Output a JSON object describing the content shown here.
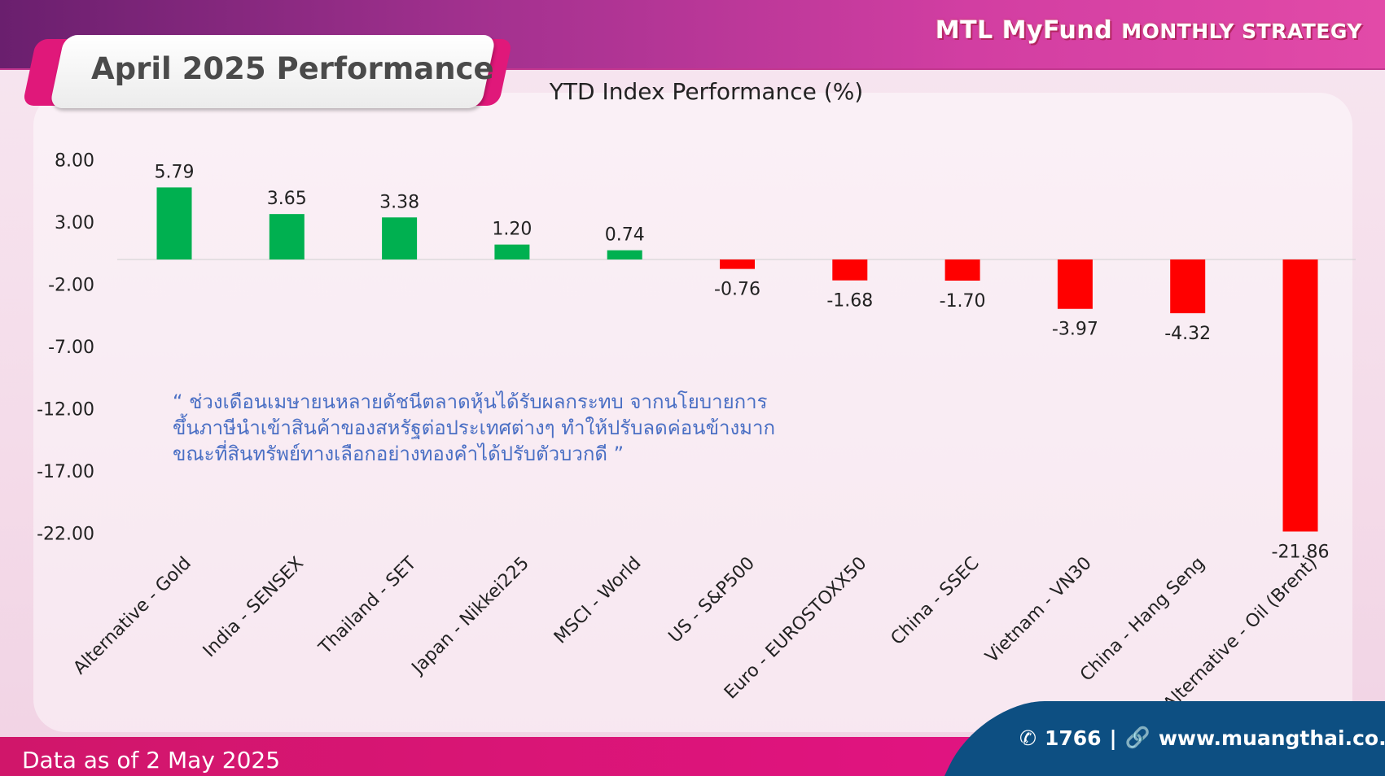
{
  "header": {
    "brand_main": "MTL MyFund",
    "brand_sub": "MONTHLY STRATEGY"
  },
  "page_title": "April 2025 Performance",
  "chart_data": {
    "type": "bar",
    "title": "YTD Index Performance (%)",
    "categories": [
      "Alternative - Gold",
      "India - SENSEX",
      "Thailand - SET",
      "Japan - Nikkei225",
      "MSCI - World",
      "US - S&P500",
      "Euro - EUROSTOXX50",
      "China - SSEC",
      "Vietnam - VN30",
      "China - Hang Seng",
      "Alternative - Oil (Brent)"
    ],
    "values": [
      5.79,
      3.65,
      3.38,
      1.2,
      0.74,
      -0.76,
      -1.68,
      -1.7,
      -3.97,
      -4.32,
      -21.86
    ],
    "value_labels": [
      "5.79",
      "3.65",
      "3.38",
      "1.20",
      "0.74",
      "-0.76",
      "-1.68",
      "-1.70",
      "-3.97",
      "-4.32",
      "-21.86"
    ],
    "y_ticks": [
      "8.00",
      "3.00",
      "-2.00",
      "-7.00",
      "-12.00",
      "-17.00",
      "-22.00"
    ],
    "ylim": [
      -22,
      8
    ],
    "grid": false,
    "colors": {
      "positive": "#00b050",
      "negative": "#ff0000"
    },
    "xlabel": "",
    "ylabel": ""
  },
  "quote": {
    "lines": [
      "“ ช่วงเดือนเมษายนหลายดัชนีตลาดหุ้นได้รับผลกระทบ จากนโยบายการ",
      "ขึ้นภาษีนำเข้าสินค้าของสหรัฐต่อประเทศต่างๆ ทำให้ปรับลดค่อนข้างมาก",
      "ขณะที่สินทรัพย์ทางเลือกอย่างทองคำได้ปรับตัวบวกดี ”"
    ]
  },
  "footer": {
    "data_as_of": "Data as of 2 May 2025",
    "phone": "1766",
    "separator": "|",
    "website": "www.muangthai.co.th",
    "phone_icon": "phone-icon",
    "link_icon": "link-icon"
  }
}
